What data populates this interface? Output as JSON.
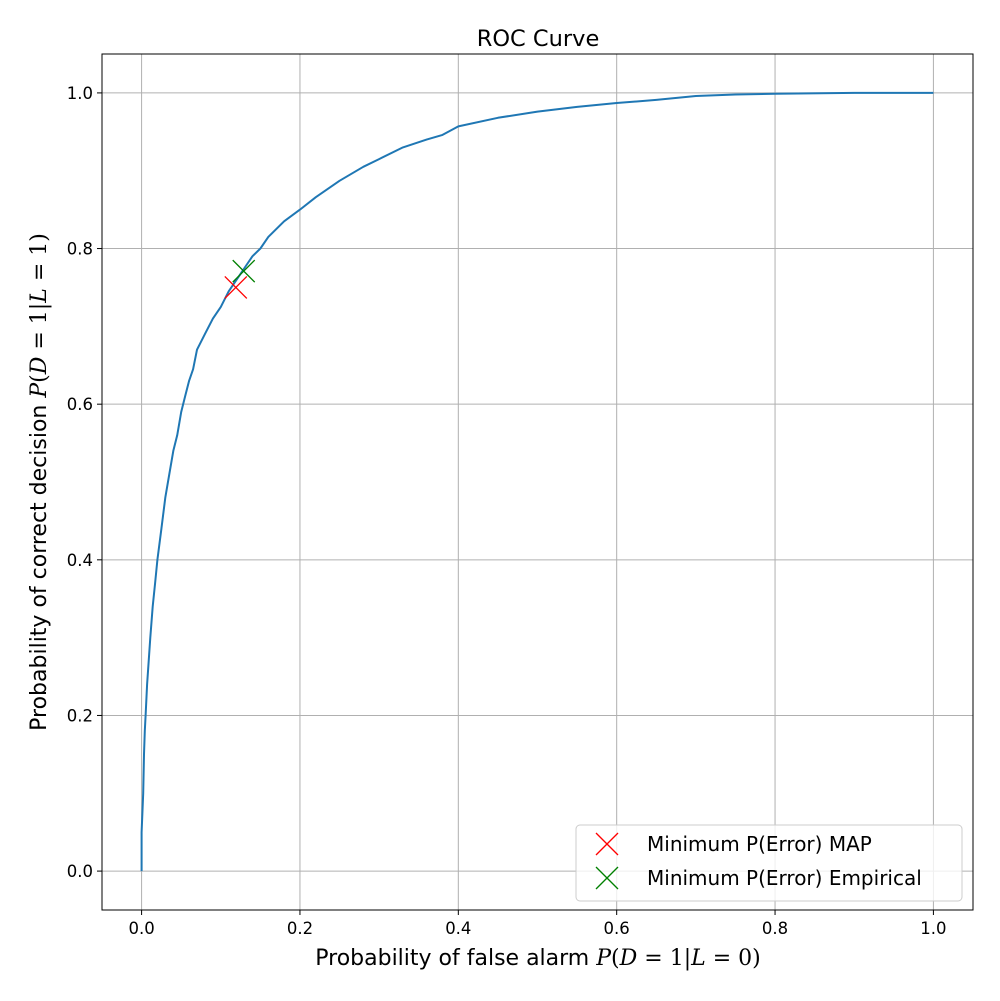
{
  "chart_data": {
    "type": "line",
    "title": "ROC Curve",
    "xlabel": {
      "text": "Probability of false alarm ",
      "math": [
        "P",
        "(",
        "D",
        " = 1|",
        "L",
        " = 0)"
      ]
    },
    "ylabel": {
      "text": "Probability of correct decision ",
      "math": [
        "P",
        "(",
        "D",
        " = 1|",
        "L",
        " = 1)"
      ]
    },
    "xlim": [
      -0.05,
      1.05
    ],
    "ylim": [
      -0.05,
      1.05
    ],
    "xticks": [
      0.0,
      0.2,
      0.4,
      0.6,
      0.8,
      1.0
    ],
    "yticks": [
      0.0,
      0.2,
      0.4,
      0.6,
      0.8,
      1.0
    ],
    "xtick_labels": [
      "0.0",
      "0.2",
      "0.4",
      "0.6",
      "0.8",
      "1.0"
    ],
    "ytick_labels": [
      "0.0",
      "0.2",
      "0.4",
      "0.6",
      "0.8",
      "1.0"
    ],
    "grid": true,
    "legend_position": "lower-right",
    "series": [
      {
        "color": "#1f77b4",
        "x": [
          0.0,
          0.0,
          0.002,
          0.003,
          0.004,
          0.005,
          0.007,
          0.009,
          0.011,
          0.014,
          0.017,
          0.02,
          0.025,
          0.03,
          0.035,
          0.04,
          0.045,
          0.05,
          0.055,
          0.06,
          0.065,
          0.07,
          0.08,
          0.09,
          0.1,
          0.11,
          0.12,
          0.13,
          0.14,
          0.15,
          0.16,
          0.18,
          0.2,
          0.22,
          0.25,
          0.28,
          0.3,
          0.33,
          0.36,
          0.38,
          0.4,
          0.45,
          0.5,
          0.55,
          0.6,
          0.65,
          0.7,
          0.75,
          0.8,
          0.9,
          1.0
        ],
        "y": [
          0.0,
          0.05,
          0.1,
          0.15,
          0.18,
          0.2,
          0.24,
          0.27,
          0.3,
          0.34,
          0.37,
          0.4,
          0.44,
          0.48,
          0.51,
          0.54,
          0.56,
          0.59,
          0.61,
          0.63,
          0.645,
          0.67,
          0.69,
          0.71,
          0.725,
          0.745,
          0.76,
          0.775,
          0.79,
          0.8,
          0.815,
          0.835,
          0.85,
          0.866,
          0.887,
          0.905,
          0.915,
          0.93,
          0.94,
          0.946,
          0.957,
          0.968,
          0.976,
          0.982,
          0.987,
          0.991,
          0.996,
          0.998,
          0.999,
          1.0,
          1.0
        ]
      }
    ],
    "markers": [
      {
        "name": "Minimum P(Error) MAP",
        "x": 0.119,
        "y": 0.75,
        "marker": "x",
        "color": "#ff0000"
      },
      {
        "name": "Minimum P(Error) Empirical",
        "x": 0.129,
        "y": 0.771,
        "marker": "x",
        "color": "#008000"
      }
    ]
  }
}
